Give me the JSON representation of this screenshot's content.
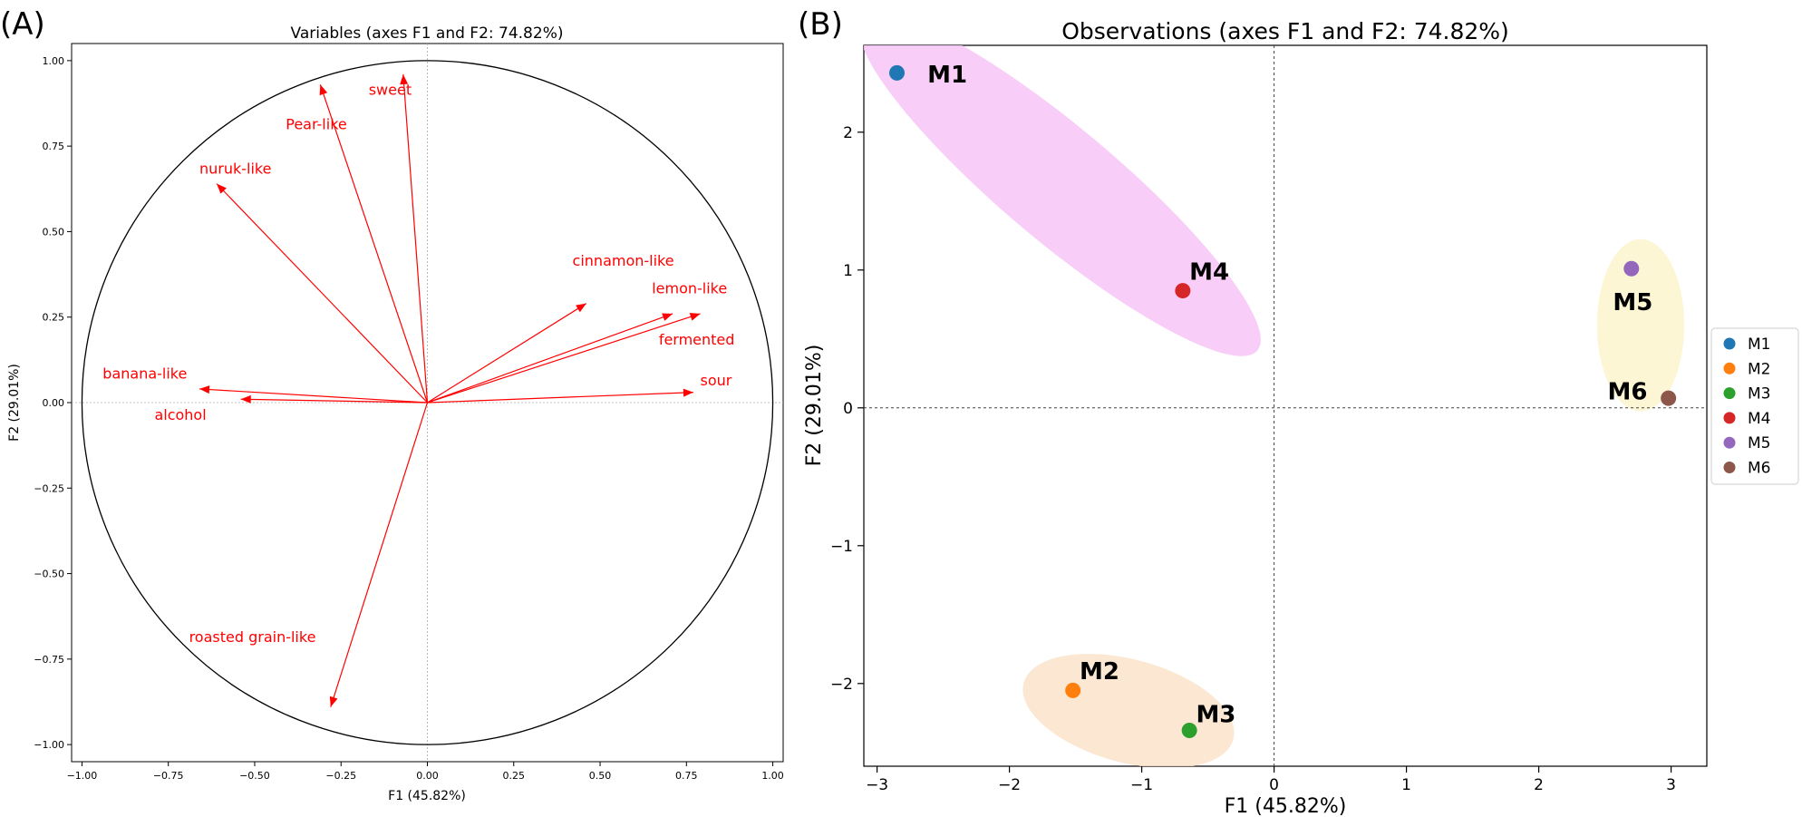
{
  "panels": {
    "a_label": "(A)",
    "b_label": "(B)"
  },
  "chart_data": [
    {
      "type": "scatter",
      "subtype": "correlation-circle",
      "title": "Variables (axes F1 and F2: 74.82%)",
      "xlabel": "F1 (45.82%)",
      "ylabel": "F2 (29.01%)",
      "xlim": [
        -1.03,
        1.03
      ],
      "ylim": [
        -1.05,
        1.05
      ],
      "xticks": [
        -1.0,
        -0.75,
        -0.5,
        -0.25,
        0.0,
        0.25,
        0.5,
        0.75,
        1.0
      ],
      "yticks": [
        -1.0,
        -0.75,
        -0.5,
        -0.25,
        0.0,
        0.25,
        0.5,
        0.75,
        1.0
      ],
      "xtick_labels": [
        "−1.00",
        "−0.75",
        "−0.50",
        "−0.25",
        "0.00",
        "0.25",
        "0.50",
        "0.75",
        "1.00"
      ],
      "ytick_labels": [
        "−1.00",
        "−0.75",
        "−0.50",
        "−0.25",
        "0.00",
        "0.25",
        "0.50",
        "0.75",
        "1.00"
      ],
      "circle_radius": 1.0,
      "arrow_color": "#ff0000",
      "variables": [
        {
          "name": "sweet",
          "x": -0.07,
          "y": 0.96,
          "lx": -0.17,
          "ly": 0.9
        },
        {
          "name": "Pear-like",
          "x": -0.31,
          "y": 0.93,
          "lx": -0.41,
          "ly": 0.8
        },
        {
          "name": "nuruk-like",
          "x": -0.61,
          "y": 0.64,
          "lx": -0.66,
          "ly": 0.67
        },
        {
          "name": "cinnamon-like",
          "x": 0.46,
          "y": 0.29,
          "lx": 0.42,
          "ly": 0.4
        },
        {
          "name": "lemon-like",
          "x": 0.71,
          "y": 0.26,
          "lx": 0.65,
          "ly": 0.32
        },
        {
          "name": "fermented",
          "x": 0.79,
          "y": 0.26,
          "lx": 0.67,
          "ly": 0.17
        },
        {
          "name": "sour",
          "x": 0.77,
          "y": 0.03,
          "lx": 0.79,
          "ly": 0.05
        },
        {
          "name": "banana-like",
          "x": -0.66,
          "y": 0.04,
          "lx": -0.94,
          "ly": 0.07
        },
        {
          "name": "alcohol",
          "x": -0.54,
          "y": 0.01,
          "lx": -0.79,
          "ly": -0.05
        },
        {
          "name": "roasted grain-like",
          "x": -0.28,
          "y": -0.89,
          "lx": -0.69,
          "ly": -0.7
        }
      ]
    },
    {
      "type": "scatter",
      "title": "Observations (axes F1 and F2: 74.82%)",
      "xlabel": "F1 (45.82%)",
      "ylabel": "F2 (29.01%)",
      "xlim": [
        -3.1,
        3.27
      ],
      "ylim": [
        -2.6,
        2.63
      ],
      "xticks": [
        -3,
        -2,
        -1,
        0,
        1,
        2,
        3
      ],
      "yticks": [
        -2,
        -1,
        0,
        1,
        2
      ],
      "xtick_labels": [
        "−3",
        "−2",
        "−1",
        "0",
        "1",
        "2",
        "3"
      ],
      "ytick_labels": [
        "−2",
        "−1",
        "0",
        "1",
        "2"
      ],
      "points": [
        {
          "name": "M1",
          "x": -2.85,
          "y": 2.43,
          "color": "#1f77b4",
          "lx": -2.62,
          "ly": 2.36
        },
        {
          "name": "M2",
          "x": -1.52,
          "y": -2.05,
          "color": "#ff7f0e",
          "lx": -1.47,
          "ly": -1.97
        },
        {
          "name": "M3",
          "x": -0.64,
          "y": -2.34,
          "color": "#2ca02c",
          "lx": -0.59,
          "ly": -2.28
        },
        {
          "name": "M4",
          "x": -0.69,
          "y": 0.85,
          "color": "#d62728",
          "lx": -0.64,
          "ly": 0.93
        },
        {
          "name": "M5",
          "x": 2.7,
          "y": 1.01,
          "color": "#9467bd",
          "lx": 2.56,
          "ly": 0.71
        },
        {
          "name": "M6",
          "x": 2.98,
          "y": 0.07,
          "color": "#8c564b",
          "lx": 2.52,
          "ly": 0.06
        }
      ],
      "clusters": [
        {
          "members": [
            "M1",
            "M4"
          ],
          "color": "#f7c6f7",
          "cx": -1.62,
          "cy": 1.62,
          "rx": 1.95,
          "ry": 0.43,
          "angle_deg": 40
        },
        {
          "members": [
            "M2",
            "M3"
          ],
          "color": "#fbe3cb",
          "cx": -1.1,
          "cy": -2.2,
          "rx": 0.82,
          "ry": 0.39,
          "angle_deg": 15
        },
        {
          "members": [
            "M5",
            "M6"
          ],
          "color": "#fdf4cc",
          "cx": 2.77,
          "cy": 0.6,
          "rx": 0.33,
          "ry": 0.65,
          "angle_deg": 0
        }
      ],
      "legend": {
        "position": "right",
        "entries": [
          {
            "label": "M1",
            "color": "#1f77b4"
          },
          {
            "label": "M2",
            "color": "#ff7f0e"
          },
          {
            "label": "M3",
            "color": "#2ca02c"
          },
          {
            "label": "M4",
            "color": "#d62728"
          },
          {
            "label": "M5",
            "color": "#9467bd"
          },
          {
            "label": "M6",
            "color": "#8c564b"
          }
        ]
      }
    }
  ]
}
